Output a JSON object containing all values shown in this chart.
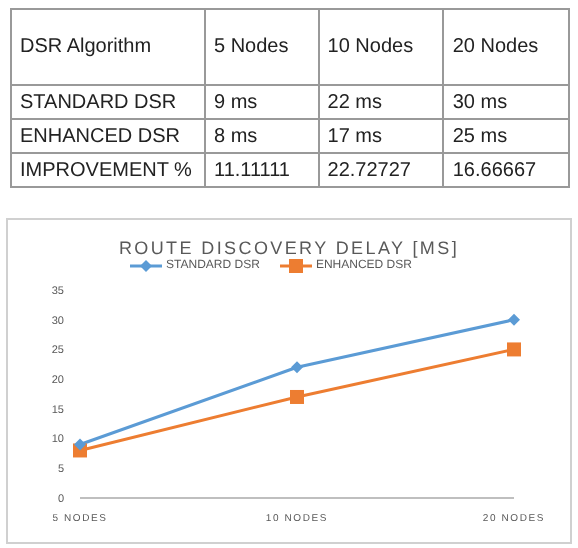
{
  "chart_data": {
    "type": "line",
    "title": "ROUTE DISCOVERY DELAY [MS]",
    "categories": [
      "5 NODES",
      "10 NODES",
      "20 NODES"
    ],
    "series": [
      {
        "name": "STANDARD DSR",
        "color": "#5b9bd5",
        "values": [
          9,
          22,
          30
        ],
        "marker": "diamond"
      },
      {
        "name": "ENHANCED DSR",
        "color": "#ed7d31",
        "values": [
          8,
          17,
          25
        ],
        "marker": "square"
      }
    ],
    "ylim": [
      0,
      35
    ],
    "yticks": [
      0,
      5,
      10,
      15,
      20,
      25,
      30,
      35
    ],
    "grid": false,
    "legend": "top",
    "annotations": [
      "DSR Algorithm",
      "5 Nodes",
      "10 Nodes",
      "20 Nodes",
      "9 ms",
      "22 ms",
      "30 ms",
      "8 ms",
      "17 ms",
      "25 ms",
      "IMPROVEMENT %",
      "11.11111",
      "22.72727",
      "16.66667"
    ]
  }
}
